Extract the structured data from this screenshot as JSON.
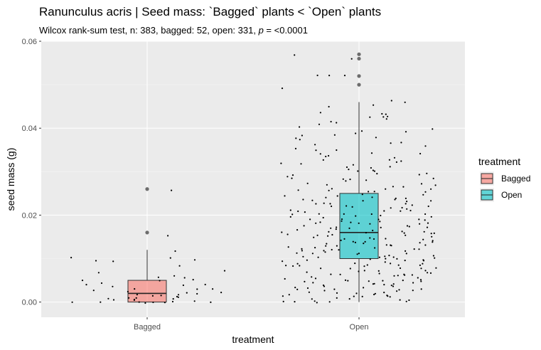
{
  "chart_data": {
    "type": "boxplot",
    "title": "Ranunculus acris | Seed mass: `Bagged` plants < `Open` plants",
    "subtitle_prefix": "Wilcox rank-sum test, n: 383, bagged: 52, open: 331, ",
    "subtitle_p": "p",
    "subtitle_suffix": " = <0.0001",
    "xlabel": "treatment",
    "ylabel": "seed mass (g)",
    "ylim": [
      -0.0035,
      0.06
    ],
    "yticks": [
      0.0,
      0.02,
      0.04,
      0.06
    ],
    "ytick_labels": [
      "0.00",
      "0.02",
      "0.04",
      "0.06"
    ],
    "categories": [
      "Bagged",
      "Open"
    ],
    "legend": {
      "title": "treatment",
      "position": "right",
      "entries": [
        {
          "label": "Bagged",
          "color": "#F8766D"
        },
        {
          "label": "Open",
          "color": "#00BFC4"
        }
      ]
    },
    "grid": true,
    "boxes": [
      {
        "category": "Bagged",
        "lower_whisker": 0.0,
        "q1": 0.0,
        "median": 0.002,
        "q3": 0.005,
        "upper_whisker": 0.012,
        "outliers": [
          0.016,
          0.026
        ],
        "color": "#F8766D"
      },
      {
        "category": "Open",
        "lower_whisker": 0.0,
        "q1": 0.01,
        "median": 0.016,
        "q3": 0.025,
        "upper_whisker": 0.046,
        "outliers": [
          0.05,
          0.052,
          0.056,
          0.057
        ],
        "color": "#00BFC4"
      }
    ],
    "jitter_points": [
      {
        "category": "Bagged",
        "values": [
          0.0256,
          0.0155,
          0.0118,
          0.0097,
          0.0085,
          0.0055,
          0.005,
          0.0048,
          0.0045,
          0.0042,
          0.004,
          0.0038,
          0.0035,
          0.0032,
          0.003,
          0.0028,
          0.0026,
          0.0024,
          0.0022,
          0.002,
          0.0019,
          0.0018,
          0.0016,
          0.0015,
          0.0013,
          0.0012,
          0.001,
          0.0009,
          0.0008,
          0.0007,
          0.0006,
          0.0005,
          0.0004,
          0.0003,
          0.0002,
          0.0001,
          0.0,
          0.0,
          0.0,
          0.0,
          0.0,
          0.0,
          0.0,
          0.0103,
          0.0101,
          0.0098,
          0.0095,
          0.0072,
          0.0068,
          0.0062,
          0.0058,
          0.0052
        ]
      },
      {
        "category": "Open",
        "values": [
          0.0567,
          0.0561,
          0.0523,
          0.0523,
          0.0521,
          0.0491,
          0.0465,
          0.0462,
          0.0455,
          0.0447,
          0.0436,
          0.0434,
          0.0432,
          0.0428,
          0.0425,
          0.0424,
          0.0421,
          0.0416,
          0.0412,
          0.0408,
          0.0403,
          0.0399,
          0.0395,
          0.0391,
          0.0388,
          0.0385,
          0.0382,
          0.0378,
          0.0375,
          0.0372,
          0.0368,
          0.0365,
          0.0362,
          0.0358,
          0.0355,
          0.0352,
          0.0348,
          0.0345,
          0.0342,
          0.0338,
          0.0335,
          0.0332,
          0.0328,
          0.0325,
          0.0322,
          0.0318,
          0.0315,
          0.0312,
          0.0308,
          0.0305,
          0.0302,
          0.0298,
          0.0295,
          0.0292,
          0.0288,
          0.0285,
          0.0282,
          0.0278,
          0.0275,
          0.0272,
          0.0268,
          0.0265,
          0.0262,
          0.0258,
          0.0255,
          0.0252,
          0.0248,
          0.0245,
          0.0242,
          0.0238,
          0.0235,
          0.0232,
          0.0228,
          0.0225,
          0.0222,
          0.0218,
          0.0215,
          0.0212,
          0.0208,
          0.0205,
          0.0202,
          0.0198,
          0.0195,
          0.0192,
          0.0188,
          0.0185,
          0.0182,
          0.0178,
          0.0175,
          0.0172,
          0.0168,
          0.0165,
          0.0162,
          0.0158,
          0.0155,
          0.0152,
          0.0148,
          0.0145,
          0.0142,
          0.0138,
          0.0135,
          0.0132,
          0.0128,
          0.0125,
          0.0122,
          0.0118,
          0.0115,
          0.0112,
          0.0108,
          0.0105,
          0.0102,
          0.0098,
          0.0095,
          0.0092,
          0.0088,
          0.0085,
          0.0082,
          0.0078,
          0.0075,
          0.0072,
          0.0068,
          0.0065,
          0.0062,
          0.0058,
          0.0055,
          0.0052,
          0.0048,
          0.0045,
          0.0042,
          0.0038,
          0.0035,
          0.0032,
          0.0028,
          0.0025,
          0.0022,
          0.0018,
          0.0015,
          0.0012,
          0.0008,
          0.0005,
          0.0002,
          0.0,
          0.0,
          0.0,
          0.031,
          0.029,
          0.027,
          0.025,
          0.023,
          0.021,
          0.019,
          0.017,
          0.015,
          0.013,
          0.011,
          0.009,
          0.007,
          0.005,
          0.003,
          0.0244,
          0.0236,
          0.0226,
          0.0214,
          0.0204,
          0.0196,
          0.0186,
          0.0174,
          0.0164,
          0.0156,
          0.0146,
          0.0134,
          0.0124,
          0.0116,
          0.0106,
          0.0094,
          0.0084,
          0.0076,
          0.0066,
          0.0054,
          0.0044,
          0.0036,
          0.0026,
          0.0014,
          0.0004,
          0.032,
          0.03,
          0.028,
          0.026,
          0.024,
          0.022,
          0.02,
          0.018,
          0.016,
          0.014,
          0.012,
          0.01,
          0.008,
          0.006,
          0.004,
          0.002,
          0.0283,
          0.0263,
          0.0243,
          0.0223,
          0.0203,
          0.0183,
          0.0163,
          0.0143,
          0.0123,
          0.0103,
          0.0083,
          0.0063,
          0.0043,
          0.0023,
          0.0003,
          0.0187,
          0.0177,
          0.0167,
          0.0157,
          0.0147,
          0.0137,
          0.0127,
          0.0117,
          0.0107,
          0.0097,
          0.0087,
          0.0077,
          0.0067,
          0.0057,
          0.0047,
          0.0037,
          0.0027,
          0.0017,
          0.0007,
          0.0193,
          0.0173,
          0.0153,
          0.0133,
          0.0113,
          0.0093,
          0.0073,
          0.0053,
          0.0033,
          0.0013,
          0.0271,
          0.0251,
          0.0231,
          0.0211,
          0.0191,
          0.0171,
          0.0151,
          0.0131,
          0.0111,
          0.0091,
          0.0071,
          0.0051,
          0.0031,
          0.0011,
          0.0159,
          0.0139,
          0.0119,
          0.0099,
          0.0079,
          0.0059,
          0.0039,
          0.0019,
          0.0001,
          0.0169,
          0.0149,
          0.0129,
          0.0109,
          0.0089,
          0.0069,
          0.0049,
          0.0029,
          0.0009,
          0.0221,
          0.0201,
          0.0181,
          0.0161,
          0.0141,
          0.0121,
          0.0101,
          0.0081,
          0.0061,
          0.0041,
          0.0021,
          0.0239,
          0.0219,
          0.0199,
          0.0179,
          0.0139,
          0.0117,
          0.0097,
          0.0057,
          0.0035,
          0.0015,
          0.0339,
          0.0319,
          0.0299,
          0.0279,
          0.0259,
          0.0229,
          0.0209,
          0.0189
        ]
      }
    ]
  }
}
